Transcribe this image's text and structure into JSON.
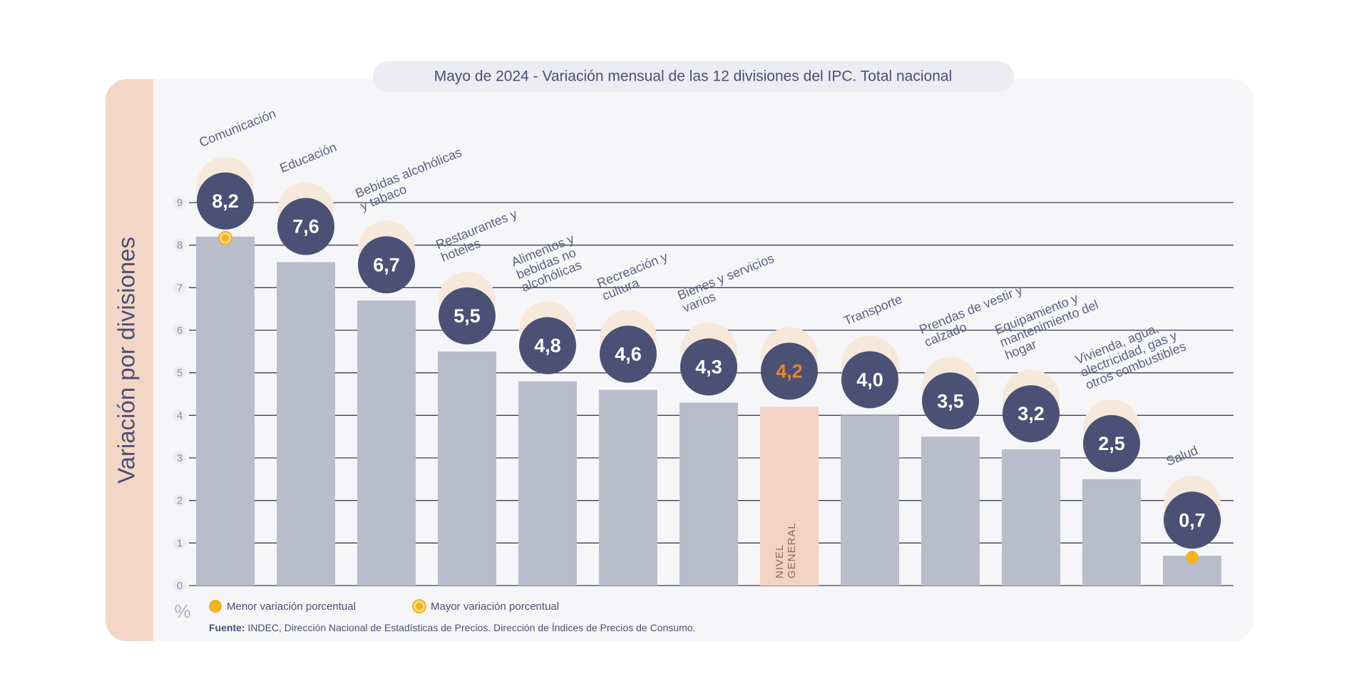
{
  "chart_data": {
    "type": "bar",
    "title": "Mayo de 2024 - Variación mensual de las 12 divisiones del IPC. Total nacional",
    "y_label": "Variación por divisiones",
    "y_unit": "%",
    "categories": [
      "Comunicación",
      "Educación",
      "Bebidas alcohólicas y tabaco",
      "Restaurantes y hoteles",
      "Alimentos y bebidas no alcohólicas",
      "Recreación y cultura",
      "Bienes y servicios varios",
      "NIVEL GENERAL",
      "Transporte",
      "Prendas de vestir y calzado",
      "Equipamiento y mantenimiento del hogar",
      "Vivienda, agua, electricidad, gas y otros combustibles",
      "Salud"
    ],
    "values": [
      8.2,
      7.6,
      6.7,
      5.5,
      4.8,
      4.6,
      4.3,
      4.2,
      4.0,
      3.5,
      3.2,
      2.5,
      0.7
    ],
    "value_labels": [
      "8,2",
      "7,6",
      "6,7",
      "5,5",
      "4,8",
      "4,6",
      "4,3",
      "4,2",
      "4,0",
      "3,5",
      "3,2",
      "2,5",
      "0,7"
    ],
    "colors": [
      "#b8bccb",
      "#b8bccb",
      "#b8bccb",
      "#b8bccb",
      "#b8bccb",
      "#b8bccb",
      "#b8bccb",
      "#f3d3c2",
      "#b8bccb",
      "#b8bccb",
      "#b8bccb",
      "#b8bccb",
      "#b8bccb"
    ],
    "value_label_colors": [
      "#ffffff",
      "#ffffff",
      "#ffffff",
      "#ffffff",
      "#ffffff",
      "#ffffff",
      "#ffffff",
      "#e8842c",
      "#ffffff",
      "#ffffff",
      "#ffffff",
      "#ffffff",
      "#ffffff"
    ],
    "ylim": [
      0,
      9
    ],
    "yticks": [
      0,
      1,
      2,
      3,
      4,
      5,
      6,
      7,
      8,
      9
    ],
    "grid": true,
    "legend": [
      "Menor variación porcentual",
      "Mayor variación porcentual"
    ],
    "source_label": "Fuente:",
    "source": "INDEC, Dirección Nacional de Estadísticas de Precios. Dirección de Índices de Precios de Consumo."
  }
}
